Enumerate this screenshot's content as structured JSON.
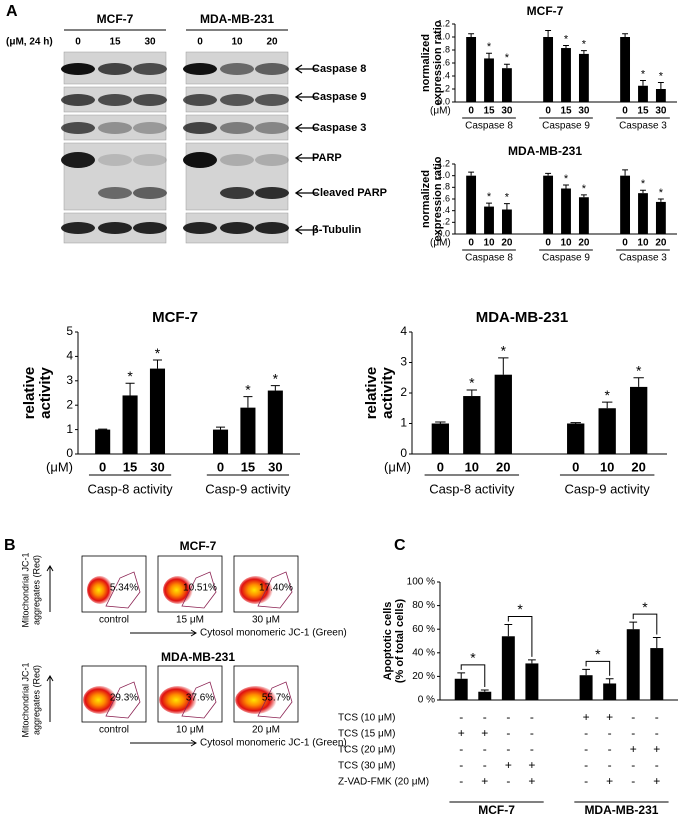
{
  "panels": [
    "A",
    "B",
    "C"
  ],
  "blot": {
    "treatment": "(μM, 24 h)",
    "lines": [
      {
        "name": "MCF-7",
        "doses": [
          0,
          15,
          30
        ]
      },
      {
        "name": "MDA-MB-231",
        "doses": [
          0,
          10,
          20
        ]
      }
    ],
    "proteins": [
      "Caspase 8",
      "Caspase 9",
      "Caspase 3",
      "PARP",
      "Cleaved PARP",
      "β-Tubulin"
    ]
  },
  "flow": {
    "ylabel": [
      "Mitochondrial JC-1",
      "aggregates (Red)"
    ],
    "xlabel": "Cytosol monomeric JC-1 (Green)",
    "rows": [
      {
        "title": "MCF-7",
        "plots": [
          {
            "label": "control",
            "gate": "5.34%"
          },
          {
            "label": "15 μM",
            "gate": "10.51%"
          },
          {
            "label": "30 μM",
            "gate": "17.40%"
          }
        ]
      },
      {
        "title": "MDA-MB-231",
        "plots": [
          {
            "label": "control",
            "gate": "29.3%"
          },
          {
            "label": "10 μM",
            "gate": "37.6%"
          },
          {
            "label": "20 μM",
            "gate": "55.7%"
          }
        ]
      }
    ]
  },
  "chart_data": [
    {
      "type": "bar",
      "title": "MCF-7",
      "ylabel": [
        "normalized",
        "expression ratio"
      ],
      "unit": "(μM)",
      "color": "#000000",
      "ylim": [
        0,
        1.2
      ],
      "yticks": [
        {
          "value": 0,
          "label": "0.0"
        },
        {
          "value": 0.2,
          "label": ".2"
        },
        {
          "value": 0.4,
          "label": ".4"
        },
        {
          "value": 0.6,
          "label": ".6"
        },
        {
          "value": 0.8,
          "label": ".8"
        },
        {
          "value": 1,
          "label": "1.0"
        },
        1.2
      ],
      "groups": [
        {
          "name": "Caspase 8",
          "categories": [
            0,
            15,
            30
          ],
          "values": [
            1.0,
            0.67,
            0.52
          ],
          "errors": [
            0.05,
            0.08,
            0.06
          ],
          "marks": [
            null,
            "*",
            "*"
          ]
        },
        {
          "name": "Caspase 9",
          "categories": [
            0,
            15,
            30
          ],
          "values": [
            1.0,
            0.83,
            0.74
          ],
          "errors": [
            0.1,
            0.04,
            0.05
          ],
          "marks": [
            null,
            "*",
            "*"
          ]
        },
        {
          "name": "Caspase 3",
          "categories": [
            0,
            15,
            30
          ],
          "values": [
            1.0,
            0.25,
            0.2
          ],
          "errors": [
            0.05,
            0.08,
            0.1
          ],
          "marks": [
            null,
            "*",
            "*"
          ]
        }
      ]
    },
    {
      "type": "bar",
      "title": "MDA-MB-231",
      "ylabel": [
        "normalized",
        "expression ratio"
      ],
      "unit": "(μM)",
      "color": "#000000",
      "ylim": [
        0,
        1.2
      ],
      "yticks": [
        {
          "value": 0,
          "label": "0.0"
        },
        {
          "value": 0.2,
          "label": ".2"
        },
        {
          "value": 0.4,
          "label": ".4"
        },
        {
          "value": 0.6,
          "label": ".6"
        },
        {
          "value": 0.8,
          "label": ".8"
        },
        {
          "value": 1,
          "label": "1.0"
        },
        1.2
      ],
      "groups": [
        {
          "name": "Caspase 8",
          "categories": [
            0,
            10,
            20
          ],
          "values": [
            1.0,
            0.47,
            0.42
          ],
          "errors": [
            0.06,
            0.06,
            0.1
          ],
          "marks": [
            null,
            "*",
            "*"
          ]
        },
        {
          "name": "Caspase 9",
          "categories": [
            0,
            10,
            20
          ],
          "values": [
            1.0,
            0.78,
            0.63
          ],
          "errors": [
            0.04,
            0.06,
            0.04
          ],
          "marks": [
            null,
            "*",
            "*"
          ]
        },
        {
          "name": "Caspase 3",
          "categories": [
            0,
            10,
            20
          ],
          "values": [
            1.0,
            0.7,
            0.55
          ],
          "errors": [
            0.1,
            0.05,
            0.05
          ],
          "marks": [
            null,
            "*",
            "*"
          ]
        }
      ]
    },
    {
      "type": "bar",
      "title": "MCF-7",
      "ylabel": [
        "relative",
        "activity"
      ],
      "unit": "(μM)",
      "color": "#000000",
      "ylim": [
        0,
        5
      ],
      "yticks": [
        0,
        1,
        2,
        3,
        4,
        5
      ],
      "groups": [
        {
          "name": "Casp-8 activity",
          "categories": [
            0,
            15,
            30
          ],
          "values": [
            1.0,
            2.4,
            3.5
          ],
          "errors": [
            0.02,
            0.5,
            0.35
          ],
          "marks": [
            null,
            "*",
            "*"
          ]
        },
        {
          "name": "Casp-9 activity",
          "categories": [
            0,
            15,
            30
          ],
          "values": [
            1.0,
            1.9,
            2.6
          ],
          "errors": [
            0.1,
            0.45,
            0.2
          ],
          "marks": [
            null,
            "*",
            "*"
          ]
        }
      ]
    },
    {
      "type": "bar",
      "title": "MDA-MB-231",
      "ylabel": [
        "relative",
        "activity"
      ],
      "unit": "(μM)",
      "color": "#000000",
      "ylim": [
        0,
        4
      ],
      "yticks": [
        0,
        1,
        2,
        3,
        4
      ],
      "groups": [
        {
          "name": "Casp-8 activity",
          "categories": [
            0,
            10,
            20
          ],
          "values": [
            1.0,
            1.9,
            2.6
          ],
          "errors": [
            0.05,
            0.2,
            0.55
          ],
          "marks": [
            null,
            "*",
            "*"
          ]
        },
        {
          "name": "Casp-9 activity",
          "categories": [
            0,
            10,
            20
          ],
          "values": [
            1.0,
            1.5,
            2.2
          ],
          "errors": [
            0.03,
            0.2,
            0.3
          ],
          "marks": [
            null,
            "*",
            "*"
          ]
        }
      ]
    },
    {
      "type": "bar",
      "ylabel": [
        "Apoptotic cells",
        "(% of total cells)"
      ],
      "color": "#000000",
      "ylim": [
        0,
        100
      ],
      "yticks": [
        {
          "value": 0,
          "label": "0 %"
        },
        {
          "value": 20,
          "label": "20 %"
        },
        {
          "value": 40,
          "label": "40 %"
        },
        {
          "value": 60,
          "label": "60 %"
        },
        {
          "value": 80,
          "label": "80 %"
        },
        {
          "value": 100,
          "label": "100 %"
        }
      ],
      "groups": [
        {
          "name": "MCF-7",
          "values": [
            18,
            7,
            54,
            31
          ],
          "errors": [
            5,
            1.5,
            10,
            3
          ]
        },
        {
          "name": "MDA-MB-231",
          "values": [
            21,
            14,
            60,
            44
          ],
          "errors": [
            5,
            4,
            6,
            9
          ]
        }
      ],
      "comparisons": [
        "*",
        "*",
        "*",
        "*"
      ],
      "conditions": [
        {
          "name": "TCS (10 μM)",
          "signs": [
            "-",
            "-",
            "-",
            "-",
            "+",
            "+",
            "-",
            "-"
          ]
        },
        {
          "name": "TCS (15 μM)",
          "signs": [
            "+",
            "+",
            "-",
            "-",
            "-",
            "-",
            "-",
            "-"
          ]
        },
        {
          "name": "TCS (20 μM)",
          "signs": [
            "-",
            "-",
            "-",
            "-",
            "-",
            "-",
            "+",
            "+"
          ]
        },
        {
          "name": "TCS (30 μM)",
          "signs": [
            "-",
            "-",
            "+",
            "+",
            "-",
            "-",
            "-",
            "-"
          ]
        },
        {
          "name": "Z-VAD-FMK (20 μM)",
          "signs": [
            "-",
            "+",
            "-",
            "+",
            "-",
            "+",
            "-",
            "+"
          ]
        }
      ]
    }
  ]
}
